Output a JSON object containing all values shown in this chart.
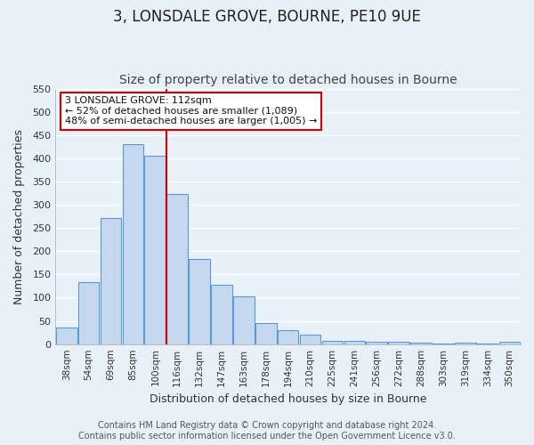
{
  "title": "3, LONSDALE GROVE, BOURNE, PE10 9UE",
  "subtitle": "Size of property relative to detached houses in Bourne",
  "xlabel": "Distribution of detached houses by size in Bourne",
  "ylabel": "Number of detached properties",
  "bar_labels": [
    "38sqm",
    "54sqm",
    "69sqm",
    "85sqm",
    "100sqm",
    "116sqm",
    "132sqm",
    "147sqm",
    "163sqm",
    "178sqm",
    "194sqm",
    "210sqm",
    "225sqm",
    "241sqm",
    "256sqm",
    "272sqm",
    "288sqm",
    "303sqm",
    "319sqm",
    "334sqm",
    "350sqm"
  ],
  "bar_values": [
    35,
    133,
    272,
    430,
    405,
    323,
    183,
    127,
    103,
    45,
    30,
    20,
    8,
    8,
    5,
    5,
    4,
    2,
    3,
    2,
    5
  ],
  "bar_color": "#c5d8ef",
  "bar_edge_color": "#5b9bd5",
  "vline_x_index": 5,
  "vline_color": "#cc0000",
  "ylim": [
    0,
    550
  ],
  "yticks": [
    0,
    50,
    100,
    150,
    200,
    250,
    300,
    350,
    400,
    450,
    500,
    550
  ],
  "annotation_title": "3 LONSDALE GROVE: 112sqm",
  "annotation_line1": "← 52% of detached houses are smaller (1,089)",
  "annotation_line2": "48% of semi-detached houses are larger (1,005) →",
  "annotation_box_color": "#ffffff",
  "annotation_box_edge": "#cc0000",
  "footer1": "Contains HM Land Registry data © Crown copyright and database right 2024.",
  "footer2": "Contains public sector information licensed under the Open Government Licence v3.0.",
  "bg_color": "#e8f0f8",
  "grid_color": "#ffffff",
  "title_fontsize": 12,
  "subtitle_fontsize": 10,
  "footer_fontsize": 7
}
